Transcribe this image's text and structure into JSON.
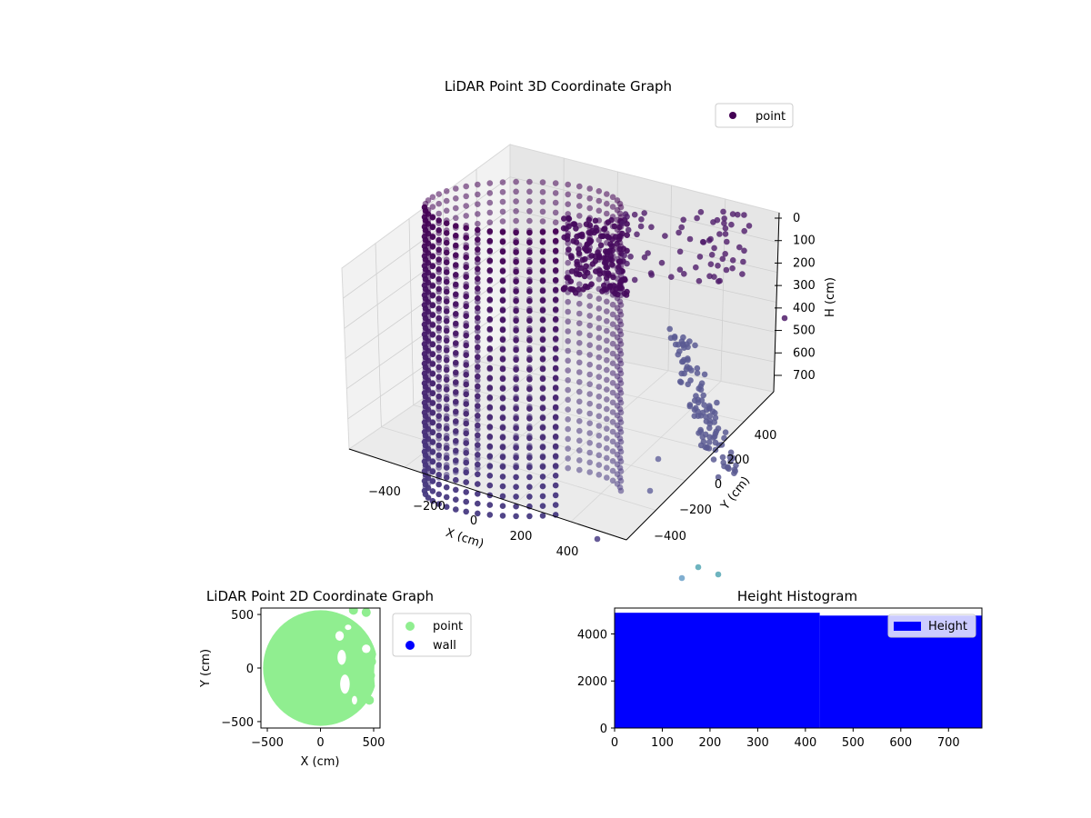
{
  "chart_data": [
    {
      "type": "scatter3d",
      "title": "LiDAR Point 3D Coordinate Graph",
      "xlabel": "X (cm)",
      "ylabel": "Y (cm)",
      "zlabel": "H (cm)",
      "xticks": [
        "−400",
        "−200",
        "0",
        "200",
        "400"
      ],
      "yticks": [
        "−400",
        "−200",
        "0",
        "200",
        "400"
      ],
      "zticks": [
        "0",
        "100",
        "200",
        "300",
        "400",
        "500",
        "600",
        "700"
      ],
      "zlim": [
        0,
        770
      ],
      "z_inverted": true,
      "legend": {
        "entries": [
          {
            "name": "point",
            "color": "#440154"
          }
        ],
        "placement": "top-right"
      },
      "colormap": "viridis",
      "cylinder": {
        "radius_cm": 520,
        "height_range": [
          0,
          770
        ]
      }
    },
    {
      "type": "scatter",
      "title": "LiDAR Point 2D Coordinate Graph",
      "xlabel": "X (cm)",
      "ylabel": "Y (cm)",
      "xlim": [
        -560,
        560
      ],
      "ylim": [
        -560,
        560
      ],
      "xticks": [
        -500,
        0,
        500
      ],
      "yticks": [
        -500,
        0,
        500
      ],
      "legend": {
        "placement": "outside-right",
        "entries": [
          {
            "name": "point",
            "color": "#90ee90"
          },
          {
            "name": "wall",
            "color": "#0000ff"
          }
        ]
      },
      "point_disk_radius": 540
    },
    {
      "type": "histogram",
      "title": "Height Histogram",
      "xlim": [
        0,
        770
      ],
      "ylim": [
        0,
        5100
      ],
      "xticks": [
        0,
        100,
        200,
        300,
        400,
        500,
        600,
        700
      ],
      "yticks": [
        0,
        2000,
        4000
      ],
      "bars": [
        {
          "x0": 0,
          "x1": 430,
          "value": 4900
        },
        {
          "x0": 430,
          "x1": 770,
          "value": 4780
        }
      ],
      "color": "#0000ff",
      "legend": {
        "entries": [
          {
            "name": "Height",
            "color": "#0000ff"
          }
        ],
        "placement": "top-right"
      }
    }
  ]
}
